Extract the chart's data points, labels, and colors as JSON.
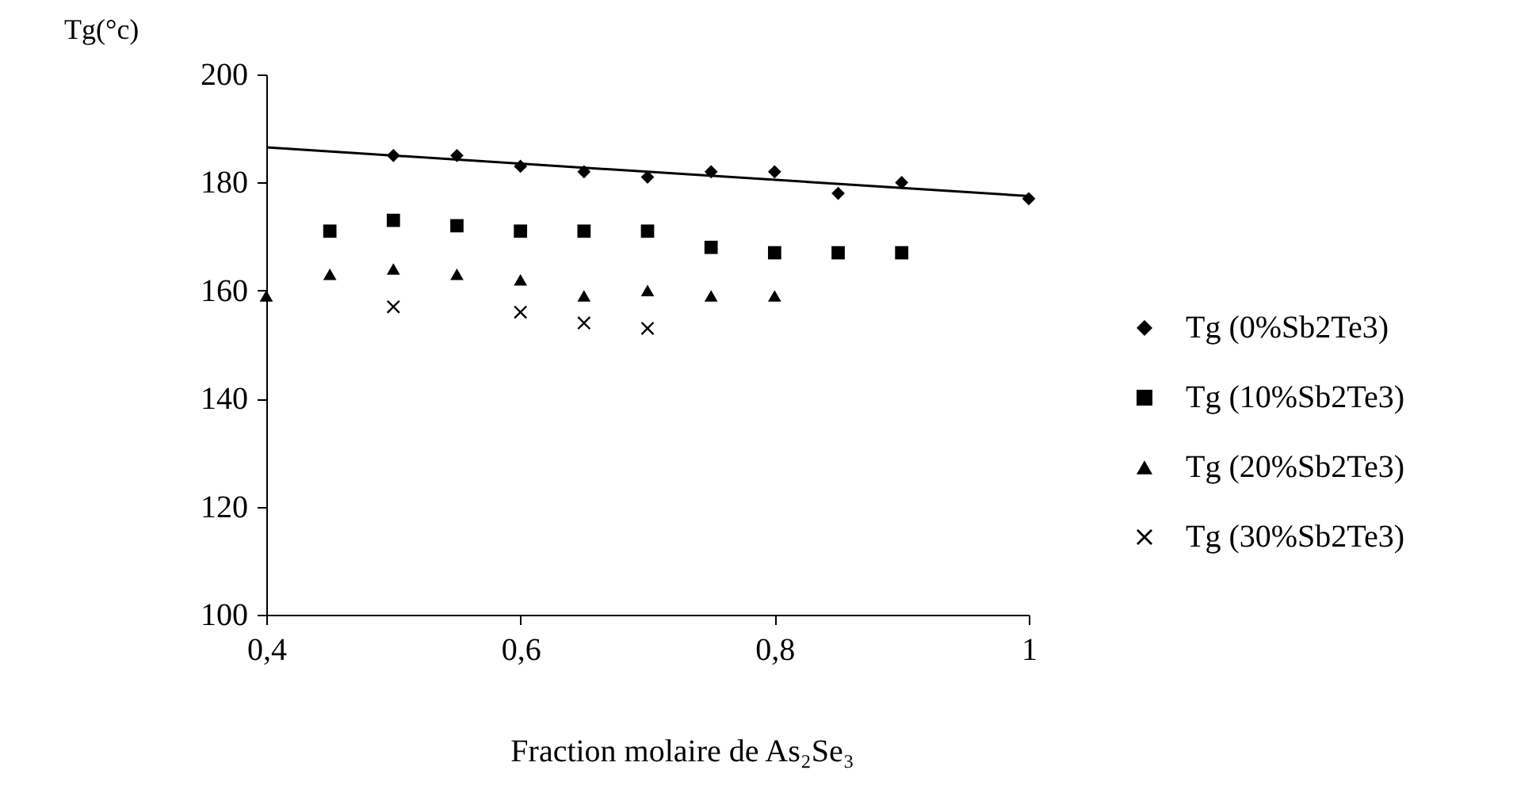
{
  "chart_data": {
    "type": "scatter",
    "xlabel": "Fraction molaire de As₂Se₃",
    "ylabel": "Tg(°c)",
    "xlim": [
      0.4,
      1
    ],
    "xticks": [
      {
        "value": 0.4,
        "label": "0,4"
      },
      {
        "value": 0.6,
        "label": "0,6"
      },
      {
        "value": 0.8,
        "label": "0,8"
      },
      1
    ],
    "ylim": [
      100,
      200
    ],
    "yticks": [
      100,
      120,
      140,
      160,
      180,
      200
    ],
    "grid": false,
    "legend": "right",
    "series": [
      {
        "name": "Tg (0%Sb2Te3)",
        "color": "#000000",
        "marker": "diamond",
        "x": [
          0.5,
          0.55,
          0.6,
          0.65,
          0.7,
          0.75,
          0.8,
          0.85,
          0.9,
          1.0
        ],
        "values": [
          185,
          185,
          183,
          182,
          181,
          182,
          182,
          178,
          180,
          177
        ]
      },
      {
        "name": "Tg (10%Sb2Te3)",
        "color": "#000000",
        "marker": "square",
        "x": [
          0.45,
          0.5,
          0.55,
          0.6,
          0.65,
          0.7,
          0.75,
          0.8,
          0.85,
          0.9
        ],
        "values": [
          171,
          173,
          172,
          171,
          171,
          171,
          168,
          167,
          167,
          167
        ]
      },
      {
        "name": "Tg (20%Sb2Te3)",
        "color": "#000000",
        "marker": "triangle",
        "x": [
          0.4,
          0.45,
          0.5,
          0.55,
          0.6,
          0.65,
          0.7,
          0.75,
          0.8
        ],
        "values": [
          159,
          163,
          164,
          163,
          162,
          159,
          160,
          159,
          159
        ]
      },
      {
        "name": "Tg (30%Sb2Te3)",
        "color": "#000000",
        "marker": "cross",
        "x": [
          0.5,
          0.6,
          0.65,
          0.7
        ],
        "values": [
          157,
          156,
          154,
          153
        ]
      },
      {
        "type": "line",
        "color": "#000000",
        "x": [
          0.4,
          1.0
        ],
        "values": [
          186.5,
          177.5
        ]
      }
    ]
  }
}
